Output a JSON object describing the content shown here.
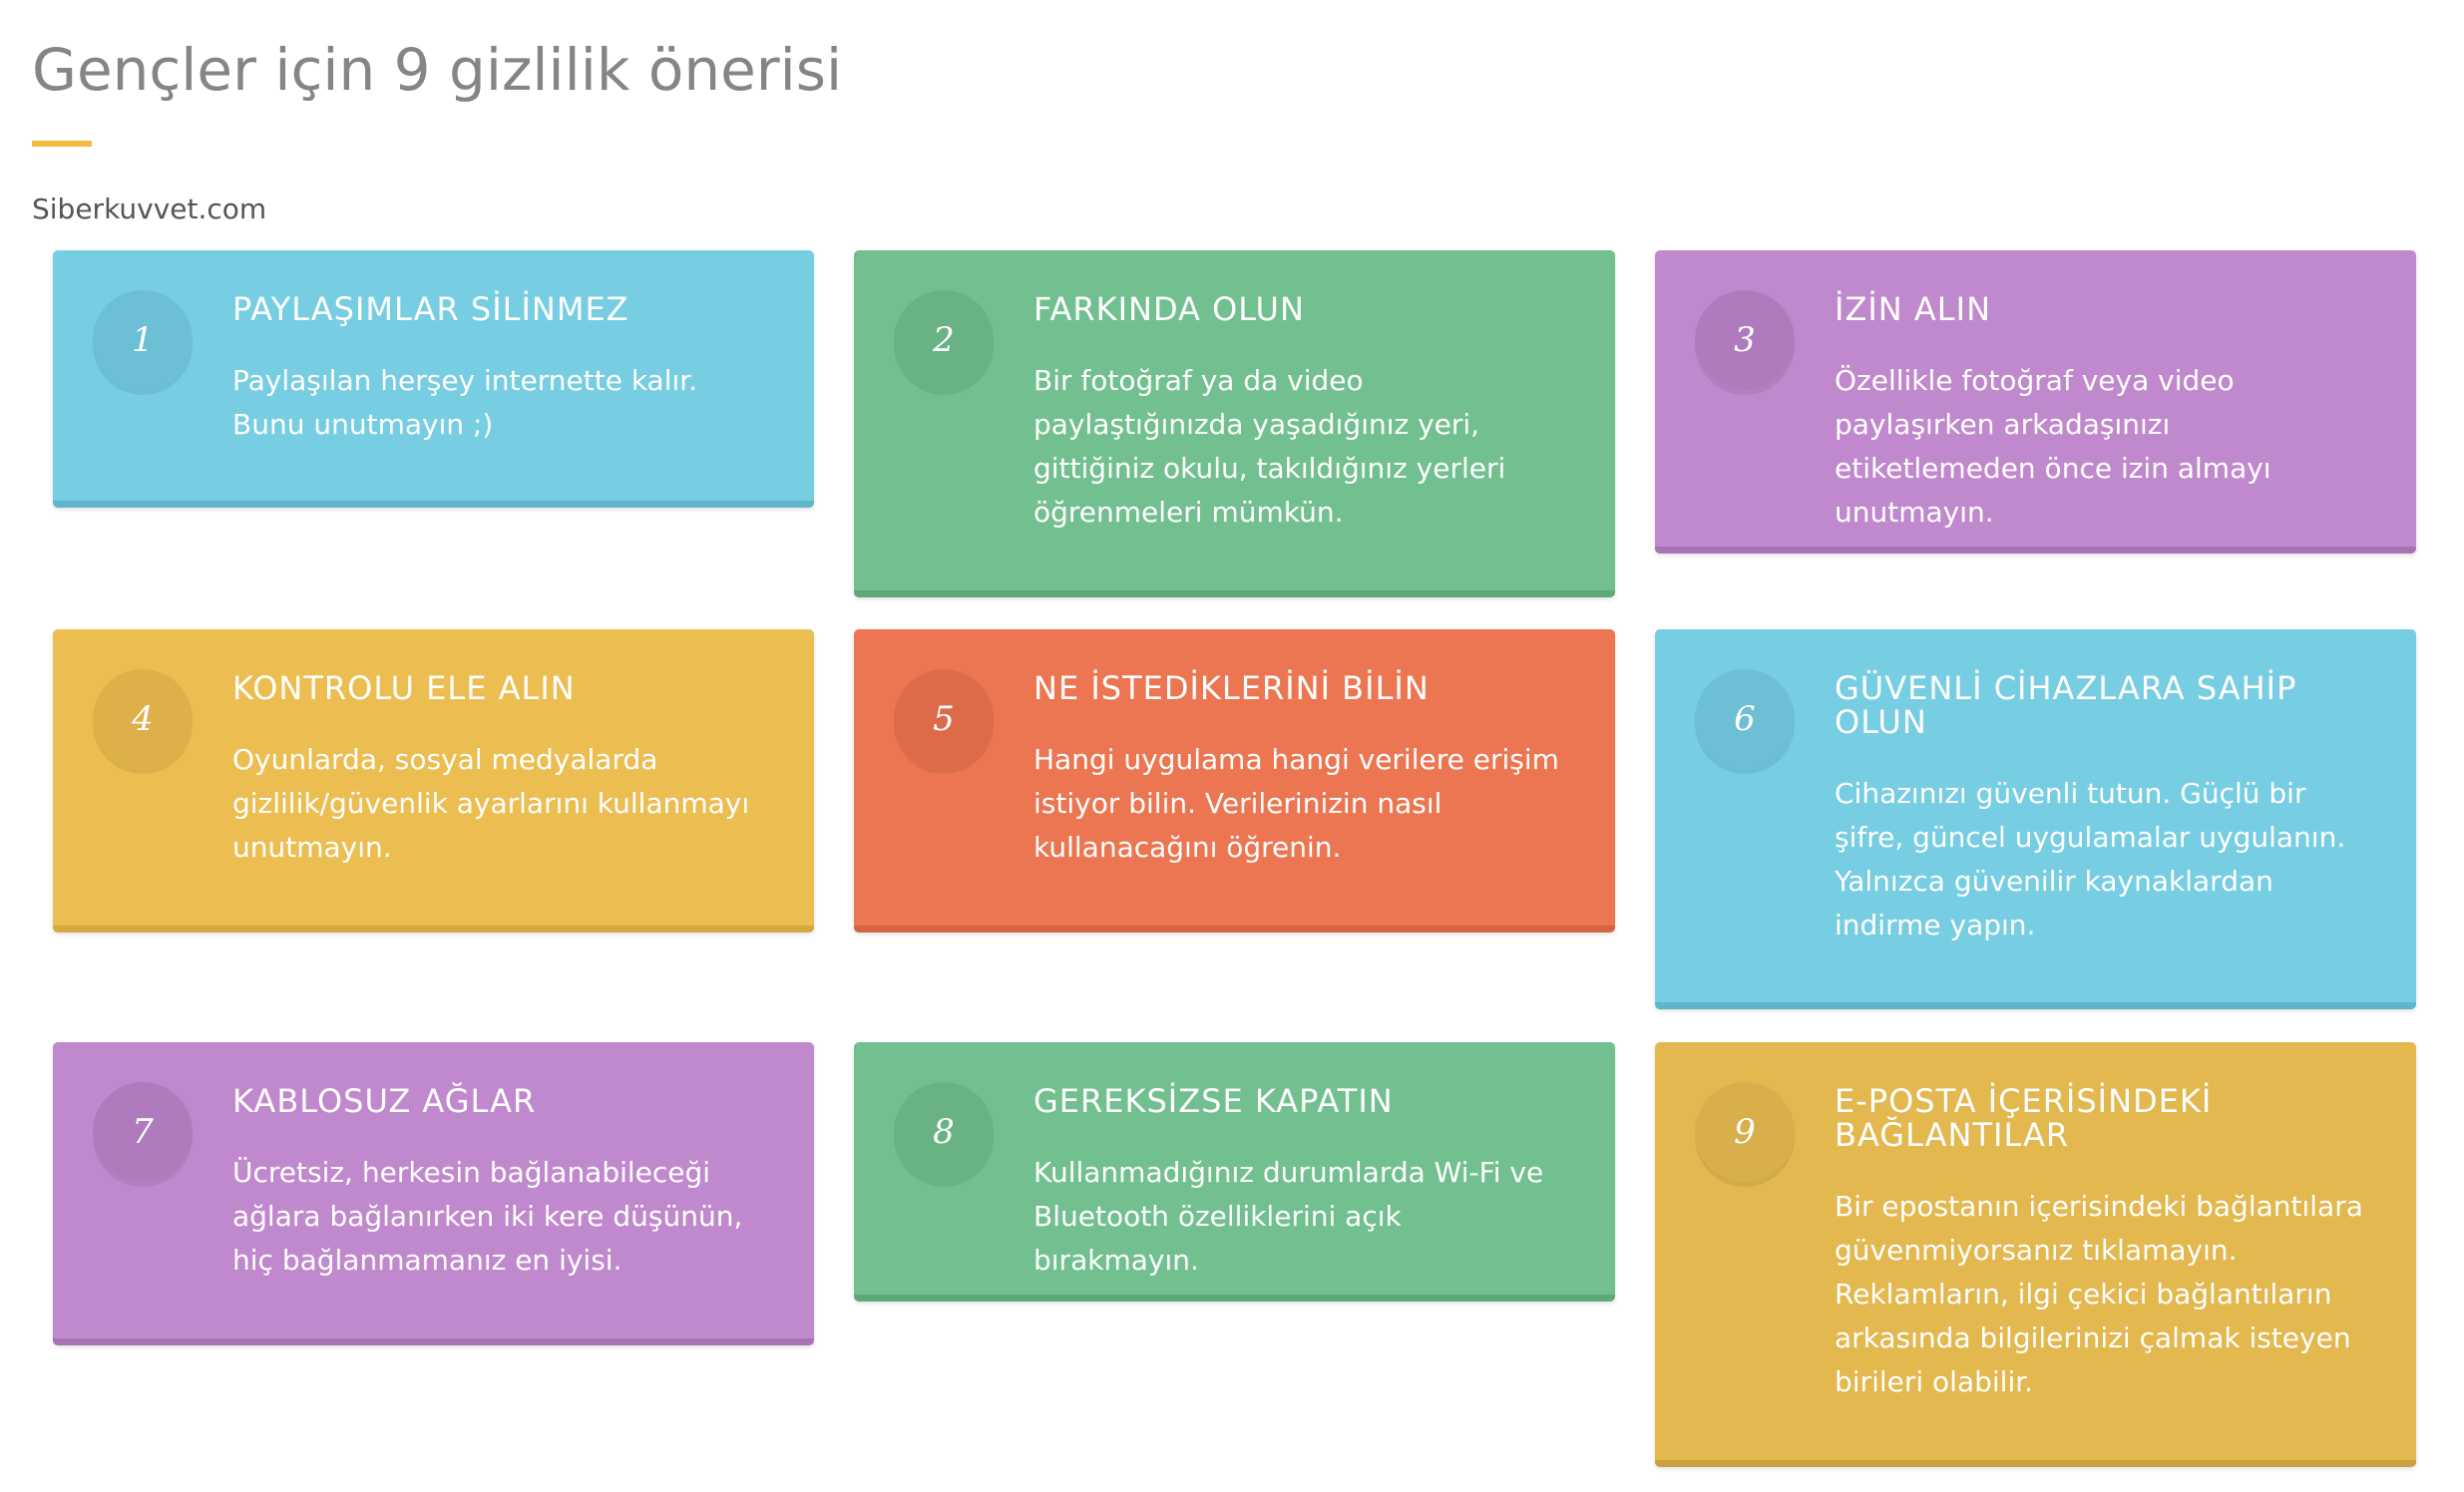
{
  "header": {
    "title": "Gençler için 9 gizlilik önerisi",
    "site": "Siberkuvvet.com",
    "accent_color": "#f0bc3e"
  },
  "cards": [
    {
      "number": "1",
      "title": "PAYLAŞIMLAR SİLİNMEZ",
      "text": "Paylaşılan herşey internette kalır. Bunu unutmayın ;)",
      "color": "#77cde2"
    },
    {
      "number": "2",
      "title": "FARKINDA OLUN",
      "text": "Bir fotoğraf ya da video paylaştığınızda yaşadığınız yeri, gittiğiniz okulu, takıldığınız yerleri öğrenmeleri mümkün.",
      "color": "#72c08f"
    },
    {
      "number": "3",
      "title": "İZİN ALIN",
      "text": "Özellikle fotoğraf veya video paylaşırken arkadaşınızı etiketlemeden önce izin almayı unutmayın.",
      "color": "#c189cd"
    },
    {
      "number": "4",
      "title": "KONTROLU ELE ALIN",
      "text": "Oyunlarda, sosyal medyalarda gizlilik/güvenlik ayarlarını kullanmayı unutmayın.",
      "color": "#ecbe51"
    },
    {
      "number": "5",
      "title": "NE İSTEDİKLERİNİ BİLİN",
      "text": "Hangi uygulama hangi verilere erişim istiyor bilin. Verilerinizin nasıl kullanacağını öğrenin.",
      "color": "#ec7651"
    },
    {
      "number": "6",
      "title": "GÜVENLİ CİHAZLARA SAHİP OLUN",
      "text": "Cihazınızı güvenli tutun. Güçlü bir şifre, güncel uygulamalar uygulanın. Yalnızca güvenilir kaynaklardan indirme yapın.",
      "color": "#77cde2"
    },
    {
      "number": "7",
      "title": "KABLOSUZ AĞLAR",
      "text": "Ücretsiz, herkesin bağlanabileceği ağlara bağlanırken iki kere düşünün, hiç bağlanmamanız en iyisi.",
      "color": "#c189cd"
    },
    {
      "number": "8",
      "title": "GEREKSİZSE KAPATIN",
      "text": "Kullanmadığınız durumlarda Wi-Fi ve Bluetooth özelliklerini açık bırakmayın.",
      "color": "#72c08f"
    },
    {
      "number": "9",
      "title": "E-POSTA İÇERİSİNDEKİ BAĞLANTILAR",
      "text": "Bir epostanın içerisindeki bağlantılara güvenmiyorsanız tıklamayın. Reklamların, ilgi çekici bağlantıların arkasında bilgilerinizi çalmak isteyen birileri olabilir.",
      "color": "#e2b84f"
    }
  ]
}
